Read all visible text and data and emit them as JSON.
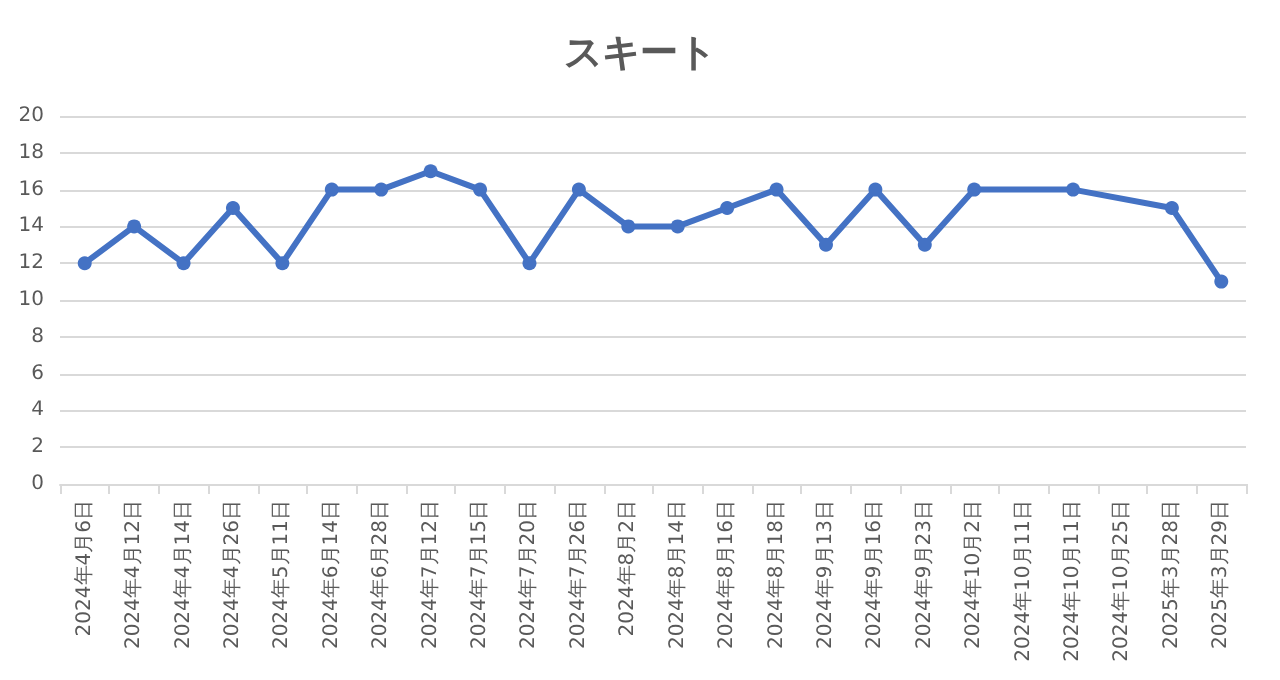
{
  "chart_data": {
    "type": "line",
    "title": "スキート",
    "categories": [
      "2024年4月6日",
      "2024年4月12日",
      "2024年4月14日",
      "2024年4月26日",
      "2024年5月11日",
      "2024年6月14日",
      "2024年6月28日",
      "2024年7月12日",
      "2024年7月15日",
      "2024年7月20日",
      "2024年7月26日",
      "2024年8月2日",
      "2024年8月14日",
      "2024年8月16日",
      "2024年8月18日",
      "2024年9月13日",
      "2024年9月16日",
      "2024年9月23日",
      "2024年10月2日",
      "2024年10月11日",
      "2024年10月11日",
      "2024年10月25日",
      "2025年3月28日",
      "2025年3月29日"
    ],
    "series": [
      {
        "color": "#4472c4",
        "values": [
          12,
          14,
          12,
          15,
          12,
          16,
          16,
          17,
          16,
          12,
          16,
          14,
          14,
          15,
          16,
          13,
          16,
          13,
          16,
          null,
          16,
          null,
          15,
          11
        ]
      }
    ],
    "ylim": [
      0,
      20
    ],
    "yticks": [
      0,
      2,
      4,
      6,
      8,
      10,
      12,
      14,
      16,
      18,
      20
    ],
    "grid": "y",
    "marker": "circle",
    "line_style": "solid"
  }
}
